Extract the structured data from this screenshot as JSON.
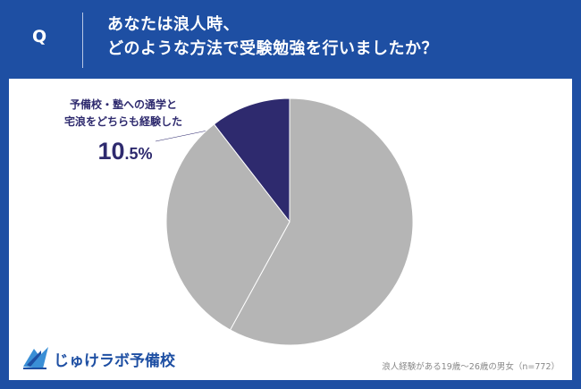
{
  "header": {
    "q_label": "Q",
    "question_line1": "あなたは浪人時、",
    "question_line2": "どのような方法で受験勉強を行いましたか？"
  },
  "callout": {
    "line1": "予備校・塾への通学と",
    "line2": "宅浪をどちらも経験した",
    "value_int": "10",
    "value_dec": ".5%"
  },
  "logo": {
    "text": "じゅけラボ予備校"
  },
  "footnote": "浪人経験がある19歳～26歳の男女（n=772）",
  "colors": {
    "background": "#1e4fa3",
    "highlight_slice": "#2e2a6e",
    "other_slice": "#b5b5b5",
    "slice_border": "#ffffff"
  },
  "chart_data": {
    "type": "pie",
    "slices": [
      {
        "label": "予備校・塾への通学と宅浪をどちらも経験した",
        "value": 10.5,
        "color": "#2e2a6e"
      },
      {
        "label": "",
        "value": 58.0,
        "color": "#b5b5b5"
      },
      {
        "label": "",
        "value": 31.5,
        "color": "#b5b5b5"
      }
    ],
    "start": "top, clockwise from the 12 o'clock position, highlighted slice ends at top"
  }
}
